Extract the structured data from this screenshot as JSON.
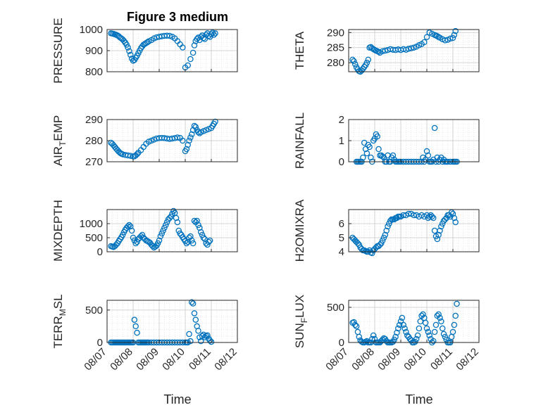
{
  "figure": {
    "title": "Figure 3 medium",
    "xlabel": "Time"
  },
  "colors": {
    "marker": "#0072BD",
    "axis": "#262626",
    "grid": "#d9d9d9",
    "background": "#ffffff"
  },
  "chart_data": [
    {
      "type": "scatter",
      "ylabel_main": "PRESSURE",
      "ylabel_sub": "",
      "yticks": [
        800,
        900,
        1000
      ],
      "ylim": [
        800,
        1000
      ],
      "xticks": [
        "08/07",
        "08/08",
        "08/09",
        "08/10",
        "08/11",
        "08/12"
      ],
      "xlim": [
        0,
        5
      ],
      "grid": true,
      "x": [
        0.15,
        0.2,
        0.25,
        0.3,
        0.35,
        0.4,
        0.45,
        0.5,
        0.55,
        0.6,
        0.65,
        0.7,
        0.75,
        0.8,
        0.85,
        0.9,
        0.95,
        1.0,
        1.05,
        1.1,
        1.15,
        1.2,
        1.25,
        1.3,
        1.35,
        1.4,
        1.45,
        1.5,
        1.55,
        1.6,
        1.7,
        1.8,
        1.9,
        2.0,
        2.1,
        2.2,
        2.3,
        2.4,
        2.5,
        2.6,
        2.7,
        2.8,
        2.9,
        3.0,
        3.1,
        3.2,
        3.3,
        3.35,
        3.4,
        3.45,
        3.5,
        3.55,
        3.6,
        3.65,
        3.7,
        3.75,
        3.8,
        3.85,
        3.9,
        3.95,
        4.0,
        4.05,
        4.1,
        4.15
      ],
      "y": [
        982,
        981,
        979,
        977,
        975,
        972,
        968,
        962,
        958,
        953,
        946,
        938,
        928,
        915,
        898,
        880,
        862,
        852,
        856,
        866,
        876,
        888,
        900,
        912,
        920,
        928,
        932,
        936,
        940,
        944,
        950,
        958,
        963,
        966,
        968,
        970,
        971,
        970,
        966,
        958,
        945,
        930,
        915,
        820,
        830,
        860,
        890,
        925,
        945,
        955,
        962,
        950,
        965,
        972,
        960,
        955,
        975,
        982,
        970,
        965,
        978,
        985,
        975,
        982
      ]
    },
    {
      "type": "scatter",
      "ylabel_main": "THETA",
      "ylabel_sub": "",
      "yticks": [
        280,
        285,
        290
      ],
      "ylim": [
        277,
        291
      ],
      "xticks": [
        "08/07",
        "08/08",
        "08/09",
        "08/10",
        "08/11",
        "08/12"
      ],
      "xlim": [
        0,
        5
      ],
      "grid": true,
      "x": [
        0.15,
        0.2,
        0.25,
        0.3,
        0.35,
        0.4,
        0.45,
        0.5,
        0.55,
        0.6,
        0.65,
        0.7,
        0.75,
        0.8,
        0.85,
        0.9,
        0.95,
        1.0,
        1.05,
        1.1,
        1.15,
        1.2,
        1.3,
        1.4,
        1.5,
        1.6,
        1.7,
        1.8,
        1.9,
        2.0,
        2.1,
        2.2,
        2.3,
        2.4,
        2.5,
        2.6,
        2.7,
        2.8,
        2.9,
        3.0,
        3.1,
        3.2,
        3.3,
        3.35,
        3.4,
        3.45,
        3.5,
        3.6,
        3.7,
        3.8,
        3.9,
        4.0,
        4.05,
        4.1
      ],
      "y": [
        281,
        280.5,
        279.5,
        278.5,
        277.8,
        277.2,
        277.0,
        277.4,
        278,
        278.6,
        279.2,
        280,
        281,
        285,
        285.2,
        284.8,
        284.5,
        284.2,
        284,
        283.8,
        283.6,
        283.3,
        283.8,
        284,
        284.2,
        284.5,
        284.3,
        284.2,
        284.4,
        284.2,
        284.5,
        284.3,
        284.6,
        284.8,
        285,
        285.3,
        285.8,
        286.2,
        286.8,
        288.5,
        290,
        289.6,
        289.2,
        289,
        288.8,
        288.5,
        288.3,
        287.8,
        287.4,
        287.6,
        288,
        288.2,
        289.2,
        290.5
      ]
    },
    {
      "type": "scatter",
      "ylabel_main": "AIR",
      "ylabel_sub": "T",
      "ylabel_after": "EMP",
      "yticks": [
        270,
        280,
        290
      ],
      "ylim": [
        270,
        290
      ],
      "xticks": [
        "08/07",
        "08/08",
        "08/09",
        "08/10",
        "08/11",
        "08/12"
      ],
      "xlim": [
        0,
        5
      ],
      "grid": true,
      "x": [
        0.15,
        0.2,
        0.25,
        0.3,
        0.35,
        0.4,
        0.45,
        0.5,
        0.55,
        0.6,
        0.7,
        0.8,
        0.9,
        1.0,
        1.05,
        1.1,
        1.15,
        1.2,
        1.3,
        1.4,
        1.5,
        1.6,
        1.7,
        1.8,
        1.9,
        2.0,
        2.1,
        2.2,
        2.3,
        2.4,
        2.5,
        2.6,
        2.7,
        2.8,
        2.9,
        3.0,
        3.05,
        3.1,
        3.15,
        3.2,
        3.25,
        3.3,
        3.35,
        3.4,
        3.45,
        3.5,
        3.55,
        3.6,
        3.7,
        3.8,
        3.9,
        4.0,
        4.05,
        4.1,
        4.15
      ],
      "y": [
        279,
        278.5,
        277.8,
        277,
        276.2,
        275.5,
        274.8,
        274.2,
        273.8,
        273.5,
        273.2,
        273,
        272.8,
        272.5,
        272.6,
        273,
        273.6,
        274.3,
        275.5,
        277,
        278.5,
        279.5,
        280,
        280.5,
        281,
        281.2,
        281.3,
        281.2,
        281,
        280.8,
        281,
        281.2,
        281.5,
        281.3,
        280,
        275,
        276,
        278,
        280,
        281.5,
        283,
        285,
        287,
        286.5,
        285,
        284,
        283.5,
        284,
        284.5,
        285,
        285.5,
        286,
        287,
        288,
        289
      ]
    },
    {
      "type": "scatter",
      "ylabel_main": "RAINFALL",
      "ylabel_sub": "",
      "yticks": [
        0,
        1,
        2
      ],
      "ylim": [
        0,
        2
      ],
      "xticks": [
        "08/07",
        "08/08",
        "08/09",
        "08/10",
        "08/11",
        "08/12"
      ],
      "xlim": [
        0,
        5
      ],
      "grid": true,
      "x": [
        0.3,
        0.35,
        0.4,
        0.45,
        0.5,
        0.55,
        0.6,
        0.65,
        0.7,
        0.75,
        0.8,
        0.85,
        0.9,
        0.95,
        1.0,
        1.05,
        1.1,
        1.15,
        1.2,
        1.25,
        1.3,
        1.35,
        1.4,
        1.45,
        1.5,
        1.55,
        1.6,
        1.65,
        1.7,
        1.75,
        1.8,
        1.85,
        1.9,
        1.95,
        2.0,
        2.1,
        2.2,
        2.3,
        2.4,
        2.5,
        2.6,
        2.7,
        2.8,
        2.85,
        2.9,
        2.95,
        3.0,
        3.05,
        3.1,
        3.15,
        3.2,
        3.25,
        3.3,
        3.35,
        3.4,
        3.45,
        3.5,
        3.55,
        3.6,
        3.65,
        3.7,
        3.75,
        3.8,
        3.9,
        4.0,
        4.05,
        4.1,
        4.15
      ],
      "y": [
        0,
        0,
        0,
        0,
        0,
        0.2,
        0.9,
        0.6,
        0.4,
        0.8,
        0.7,
        0.2,
        0,
        1.0,
        1.1,
        1.3,
        1.2,
        0.6,
        0.3,
        0.3,
        0.25,
        0.2,
        0,
        0,
        0.3,
        0,
        0,
        0.2,
        0.3,
        0.1,
        0,
        0,
        0,
        0,
        0,
        0,
        0,
        0,
        0,
        0,
        0,
        0,
        0,
        0.2,
        0,
        0.1,
        0.5,
        0.3,
        0,
        0,
        0,
        0.1,
        1.6,
        0,
        0.2,
        0,
        0.1,
        0.2,
        0,
        0.1,
        0,
        0,
        0,
        0,
        0,
        0,
        0,
        0
      ]
    },
    {
      "type": "scatter",
      "ylabel_main": "MIXDEPTH",
      "ylabel_sub": "",
      "yticks": [
        0,
        500,
        1000
      ],
      "ylim": [
        0,
        1500
      ],
      "xticks": [
        "08/07",
        "08/08",
        "08/09",
        "08/10",
        "08/11",
        "08/12"
      ],
      "xlim": [
        0,
        5
      ],
      "grid": true,
      "x": [
        0.15,
        0.2,
        0.25,
        0.3,
        0.35,
        0.4,
        0.45,
        0.5,
        0.55,
        0.6,
        0.65,
        0.7,
        0.75,
        0.8,
        0.85,
        0.9,
        0.95,
        1.0,
        1.05,
        1.1,
        1.15,
        1.2,
        1.25,
        1.3,
        1.35,
        1.4,
        1.45,
        1.5,
        1.55,
        1.6,
        1.65,
        1.7,
        1.75,
        1.8,
        1.85,
        1.9,
        1.95,
        2.0,
        2.05,
        2.1,
        2.15,
        2.2,
        2.25,
        2.3,
        2.35,
        2.4,
        2.45,
        2.5,
        2.55,
        2.6,
        2.65,
        2.7,
        2.75,
        2.8,
        2.85,
        2.9,
        2.95,
        3.0,
        3.05,
        3.1,
        3.15,
        3.2,
        3.25,
        3.3,
        3.35,
        3.4,
        3.45,
        3.5,
        3.55,
        3.6,
        3.65,
        3.7,
        3.75,
        3.8,
        3.85,
        3.9,
        3.95
      ],
      "y": [
        200,
        180,
        170,
        200,
        250,
        300,
        380,
        450,
        520,
        600,
        700,
        780,
        850,
        900,
        950,
        900,
        750,
        500,
        400,
        300,
        350,
        450,
        500,
        550,
        600,
        500,
        450,
        400,
        380,
        350,
        320,
        250,
        200,
        150,
        180,
        220,
        300,
        400,
        550,
        650,
        750,
        850,
        950,
        1050,
        1150,
        1200,
        1250,
        1350,
        1450,
        1380,
        1200,
        1050,
        750,
        650,
        600,
        520,
        450,
        380,
        300,
        350,
        500,
        550,
        400,
        300,
        1100,
        1050,
        1100,
        950,
        850,
        700,
        600,
        500,
        450,
        300,
        250,
        350,
        400
      ]
    },
    {
      "type": "scatter",
      "ylabel_main": "H2OMIXRA",
      "ylabel_sub": "",
      "yticks": [
        4,
        5,
        6
      ],
      "ylim": [
        4,
        7
      ],
      "xticks": [
        "08/07",
        "08/08",
        "08/09",
        "08/10",
        "08/11",
        "08/12"
      ],
      "xlim": [
        0,
        5
      ],
      "grid": true,
      "x": [
        0.15,
        0.2,
        0.25,
        0.3,
        0.35,
        0.4,
        0.45,
        0.5,
        0.55,
        0.6,
        0.65,
        0.7,
        0.75,
        0.8,
        0.85,
        0.9,
        0.95,
        1.0,
        1.05,
        1.1,
        1.15,
        1.2,
        1.25,
        1.3,
        1.35,
        1.4,
        1.45,
        1.5,
        1.55,
        1.6,
        1.65,
        1.7,
        1.75,
        1.8,
        1.85,
        1.9,
        1.95,
        2.0,
        2.1,
        2.2,
        2.3,
        2.4,
        2.5,
        2.6,
        2.7,
        2.8,
        2.9,
        3.0,
        3.05,
        3.1,
        3.15,
        3.2,
        3.25,
        3.3,
        3.35,
        3.4,
        3.45,
        3.5,
        3.55,
        3.6,
        3.65,
        3.7,
        3.75,
        3.8,
        3.85,
        3.9,
        3.95,
        4.0,
        4.05,
        4.1
      ],
      "y": [
        5.0,
        4.9,
        4.8,
        4.7,
        4.6,
        4.5,
        4.3,
        4.2,
        4.1,
        4.1,
        4.05,
        4.0,
        4.0,
        4.1,
        3.95,
        3.9,
        4.1,
        4.2,
        4.3,
        4.4,
        4.4,
        4.5,
        4.6,
        4.8,
        5.0,
        5.2,
        5.5,
        5.8,
        6.0,
        6.2,
        6.3,
        6.3,
        6.3,
        6.4,
        6.4,
        6.5,
        6.5,
        6.5,
        6.6,
        6.6,
        6.7,
        6.7,
        6.6,
        6.6,
        6.5,
        6.6,
        6.5,
        6.6,
        6.4,
        6.5,
        6.6,
        6.5,
        6.4,
        5.5,
        5.1,
        4.9,
        5.2,
        5.5,
        5.8,
        6.0,
        6.2,
        6.3,
        6.4,
        6.6,
        6.6,
        6.5,
        6.8,
        6.7,
        6.4,
        6.1
      ]
    },
    {
      "type": "scatter",
      "ylabel_main": "TERR",
      "ylabel_sub": "M",
      "ylabel_after": "SL",
      "yticks": [
        0,
        500
      ],
      "ylim": [
        0,
        650
      ],
      "xticks": [
        "08/07",
        "08/08",
        "08/09",
        "08/10",
        "08/11",
        "08/12"
      ],
      "xlim": [
        0,
        5
      ],
      "grid": true,
      "x": [
        0.15,
        0.2,
        0.25,
        0.3,
        0.35,
        0.4,
        0.45,
        0.5,
        0.55,
        0.6,
        0.65,
        0.7,
        0.75,
        0.8,
        0.85,
        0.9,
        0.95,
        1.0,
        1.05,
        1.1,
        1.15,
        1.2,
        1.25,
        1.3,
        1.35,
        1.4,
        1.45,
        1.5,
        1.55,
        1.6,
        1.7,
        1.8,
        1.9,
        2.0,
        2.1,
        2.2,
        2.3,
        2.4,
        2.5,
        2.6,
        2.7,
        2.8,
        2.9,
        3.0,
        3.05,
        3.1,
        3.15,
        3.2,
        3.25,
        3.3,
        3.35,
        3.4,
        3.45,
        3.5,
        3.55,
        3.6,
        3.65,
        3.7,
        3.75,
        3.8,
        3.85,
        3.9,
        3.95,
        4.0
      ],
      "y": [
        0,
        0,
        0,
        0,
        0,
        0,
        0,
        0,
        0,
        0,
        0,
        0,
        0,
        0,
        0,
        0,
        0,
        0,
        350,
        250,
        150,
        0,
        0,
        0,
        0,
        0,
        0,
        0,
        0,
        0,
        0,
        0,
        0,
        0,
        0,
        0,
        0,
        0,
        0,
        0,
        0,
        0,
        0,
        0,
        0,
        0,
        130,
        20,
        620,
        600,
        450,
        350,
        250,
        180,
        80,
        20,
        100,
        120,
        80,
        100,
        110,
        60,
        30,
        10
      ]
    },
    {
      "type": "scatter",
      "ylabel_main": "SUN",
      "ylabel_sub": "F",
      "ylabel_after": "LUX",
      "yticks": [
        0,
        500
      ],
      "ylim": [
        0,
        600
      ],
      "xticks": [
        "08/07",
        "08/08",
        "08/09",
        "08/10",
        "08/11",
        "08/12"
      ],
      "xlim": [
        0,
        5
      ],
      "grid": true,
      "x": [
        0.15,
        0.2,
        0.25,
        0.3,
        0.35,
        0.4,
        0.45,
        0.5,
        0.55,
        0.6,
        0.65,
        0.7,
        0.75,
        0.8,
        0.85,
        0.9,
        0.95,
        1.0,
        1.05,
        1.1,
        1.15,
        1.2,
        1.25,
        1.3,
        1.35,
        1.4,
        1.45,
        1.5,
        1.55,
        1.6,
        1.65,
        1.7,
        1.75,
        1.8,
        1.85,
        1.9,
        1.95,
        2.0,
        2.05,
        2.1,
        2.15,
        2.2,
        2.25,
        2.3,
        2.35,
        2.4,
        2.45,
        2.5,
        2.55,
        2.6,
        2.65,
        2.7,
        2.75,
        2.8,
        2.85,
        2.9,
        2.95,
        3.0,
        3.05,
        3.1,
        3.15,
        3.2,
        3.25,
        3.3,
        3.35,
        3.4,
        3.45,
        3.5,
        3.55,
        3.6,
        3.65,
        3.7,
        3.75,
        3.8,
        3.85,
        3.9,
        3.95,
        4.0,
        4.05,
        4.1,
        4.15
      ],
      "y": [
        280,
        290,
        250,
        230,
        150,
        80,
        30,
        10,
        0,
        0,
        10,
        20,
        0,
        0,
        0,
        50,
        100,
        50,
        0,
        0,
        0,
        0,
        20,
        40,
        60,
        50,
        20,
        0,
        0,
        0,
        0,
        10,
        40,
        80,
        140,
        200,
        250,
        300,
        350,
        250,
        200,
        150,
        100,
        80,
        50,
        30,
        0,
        0,
        10,
        50,
        100,
        200,
        300,
        380,
        400,
        350,
        280,
        200,
        150,
        100,
        50,
        0,
        20,
        150,
        250,
        380,
        400,
        350,
        300,
        200,
        120,
        80,
        40,
        0,
        0,
        0,
        80,
        150,
        250,
        380,
        550
      ]
    }
  ]
}
